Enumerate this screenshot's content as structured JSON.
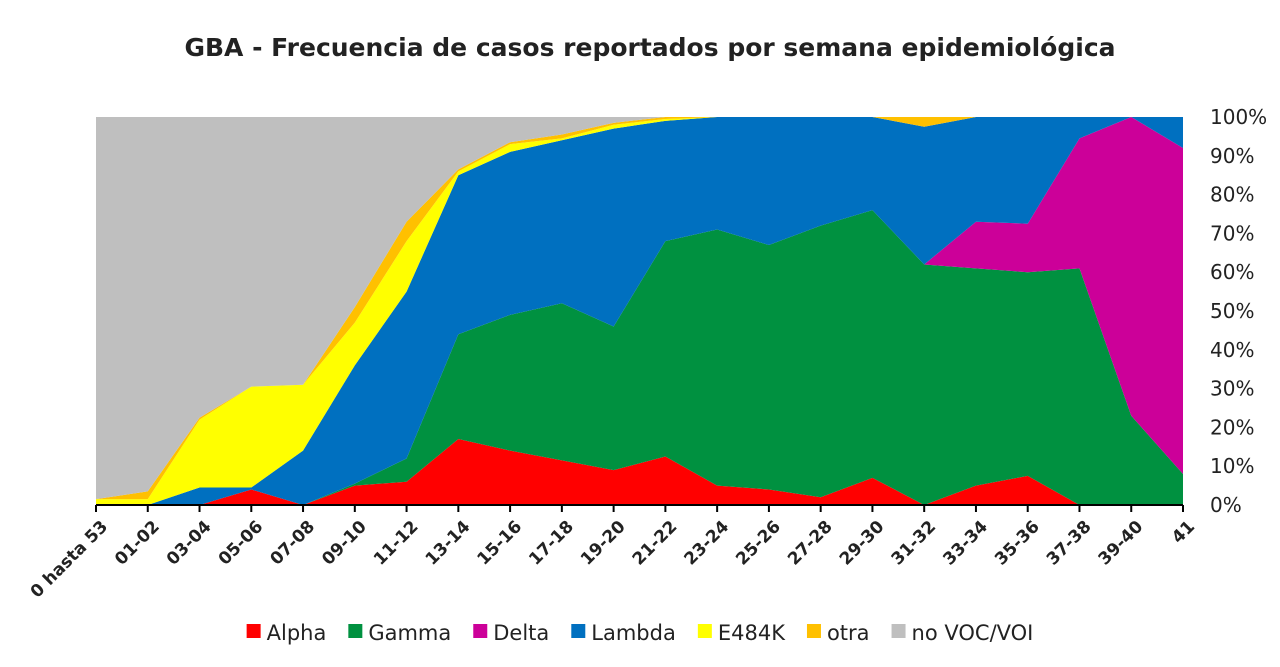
{
  "chart_data": {
    "type": "area",
    "stacked": "percent",
    "title": "GBA - Frecuencia de casos reportados por semana epidemiológica",
    "categories": [
      "0 hasta 53",
      "01-02",
      "03-04",
      "05-06",
      "07-08",
      "09-10",
      "11-12",
      "13-14",
      "15-16",
      "17-18",
      "19-20",
      "21-22",
      "23-24",
      "25-26",
      "27-28",
      "29-30",
      "31-32",
      "33-34",
      "35-36",
      "37-38",
      "39-40",
      "41"
    ],
    "y_ticks": [
      "0%",
      "10%",
      "20%",
      "30%",
      "40%",
      "50%",
      "60%",
      "70%",
      "80%",
      "90%",
      "100%"
    ],
    "ylim": [
      0,
      100
    ],
    "y_axis_side": "right",
    "grid": false,
    "legend_position": "bottom",
    "series": [
      {
        "name": "Alpha",
        "color": "#ff0000",
        "values": [
          0,
          0,
          0,
          4,
          0,
          5,
          6,
          17,
          14,
          11.5,
          9,
          12.5,
          5,
          4,
          2,
          7,
          0,
          5,
          7.5,
          0,
          0,
          0
        ]
      },
      {
        "name": "Gamma",
        "color": "#009140",
        "values": [
          0,
          0,
          0,
          0,
          0,
          0.5,
          6,
          27,
          35,
          40.5,
          37,
          55.5,
          66,
          63,
          70,
          69,
          62,
          56,
          52.5,
          61,
          23,
          8
        ]
      },
      {
        "name": "Delta",
        "color": "#cc0099",
        "values": [
          0,
          0,
          0,
          0,
          0,
          0,
          0,
          0,
          0,
          0,
          0,
          0,
          0,
          0,
          0,
          0,
          0,
          12,
          12.5,
          33.5,
          77,
          84
        ]
      },
      {
        "name": "Lambda",
        "color": "#0070c0",
        "values": [
          0,
          0,
          4.5,
          0.5,
          14,
          30.5,
          43,
          41,
          42,
          42,
          51,
          31,
          29,
          33,
          28,
          24,
          35.5,
          27,
          27.5,
          5.5,
          0,
          8
        ]
      },
      {
        "name": "E484K",
        "color": "#ffff00",
        "values": [
          1.5,
          1.5,
          17.5,
          26,
          17,
          11,
          13,
          1,
          2,
          0.5,
          1,
          0.5,
          0,
          0,
          0,
          0,
          0,
          0,
          0,
          0,
          0,
          0
        ]
      },
      {
        "name": "otra",
        "color": "#ffc000",
        "values": [
          0,
          2,
          0.5,
          0,
          0,
          4,
          5,
          0.5,
          0.5,
          1,
          0.5,
          0.5,
          0,
          0,
          0,
          0,
          2.5,
          0,
          0,
          0,
          0,
          0
        ]
      },
      {
        "name": "no VOC/VOI",
        "color": "#bfbfbf",
        "values": [
          98.5,
          96.5,
          77.5,
          69.5,
          69,
          49,
          27,
          13.5,
          6.5,
          4.5,
          1.5,
          0,
          0,
          0,
          0,
          0,
          0,
          0,
          0,
          0,
          0,
          0
        ]
      }
    ]
  }
}
